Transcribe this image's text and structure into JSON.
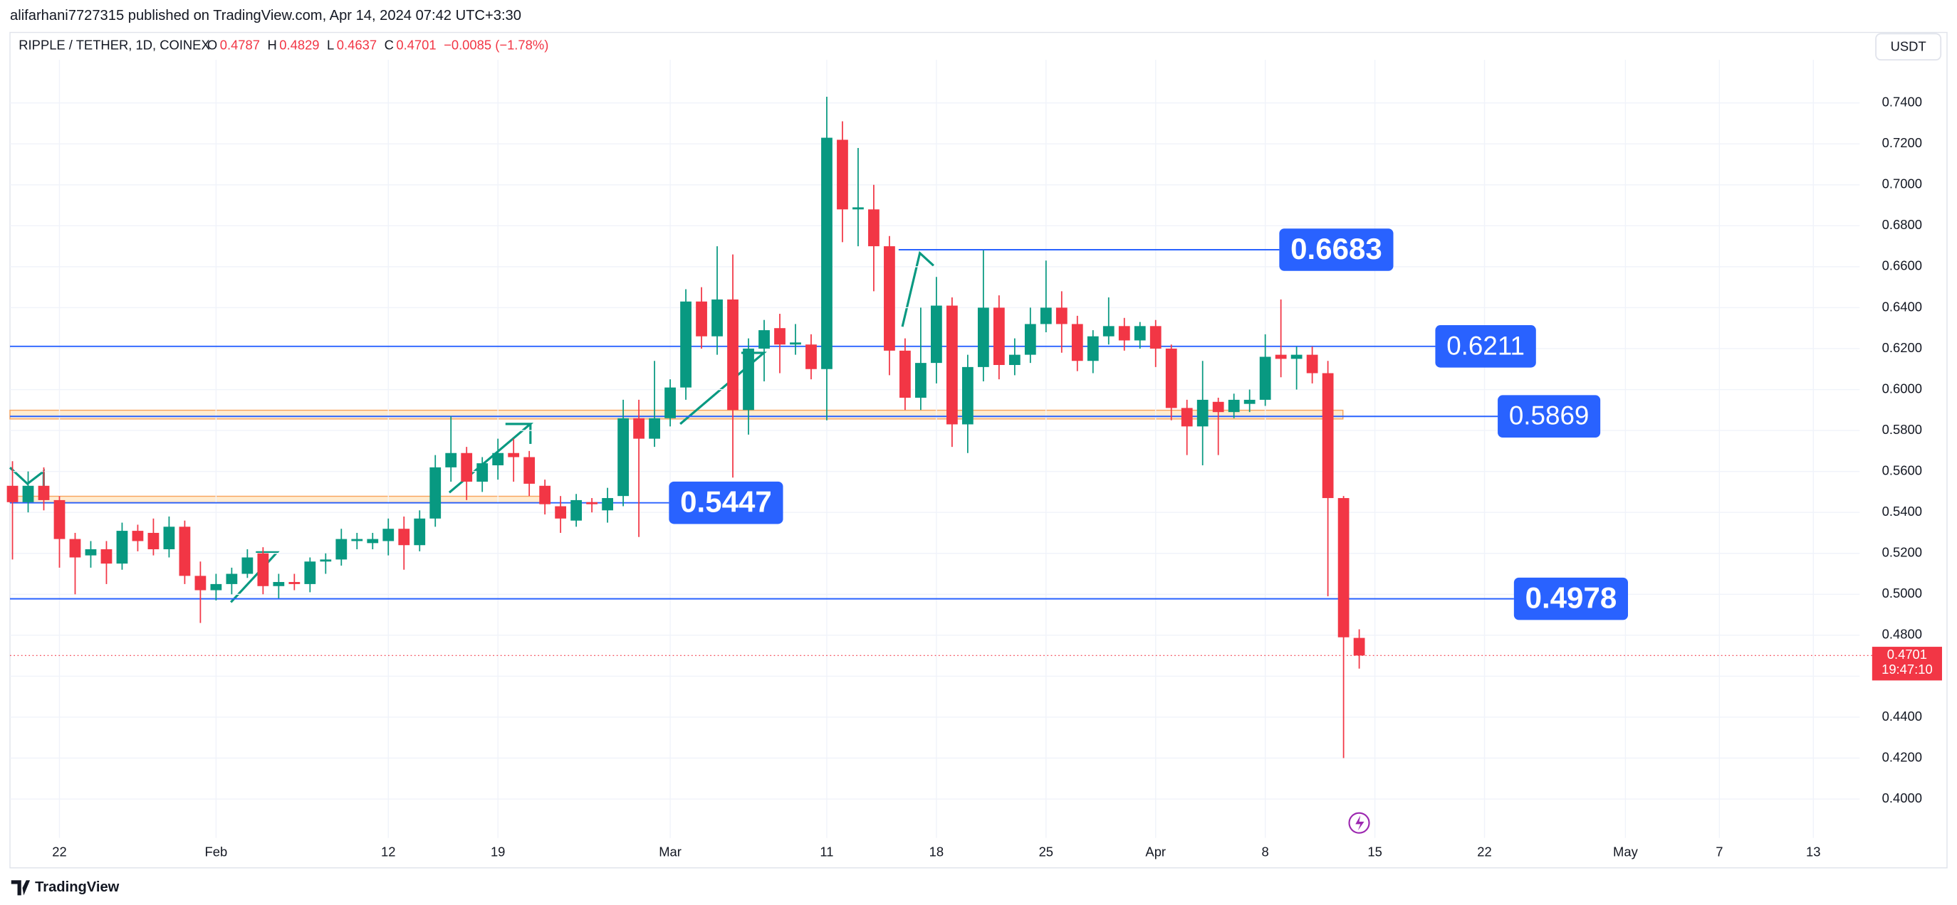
{
  "header": {
    "publisher": "alifarhani7727315 published on TradingView.com, Apr 14, 2024 07:42 UTC+3:30",
    "currency_button": "USDT",
    "brand": "TradingView"
  },
  "chart_data": {
    "type": "candlestick",
    "title": "RIPPLE / TETHER, 1D, COINEX",
    "legend": {
      "labels": [
        "O",
        "H",
        "L",
        "C"
      ],
      "values": [
        0.4787,
        0.4829,
        0.4637,
        0.4701
      ],
      "change_label": "−0.0085 (−1.78%)"
    },
    "up_color": "#089981",
    "down_color": "#f23645",
    "x": [
      "2024-01-19",
      "2024-01-20",
      "2024-01-21",
      "2024-01-22",
      "2024-01-23",
      "2024-01-24",
      "2024-01-25",
      "2024-01-26",
      "2024-01-27",
      "2024-01-28",
      "2024-01-29",
      "2024-01-30",
      "2024-01-31",
      "2024-02-01",
      "2024-02-02",
      "2024-02-03",
      "2024-02-04",
      "2024-02-05",
      "2024-02-06",
      "2024-02-07",
      "2024-02-08",
      "2024-02-09",
      "2024-02-10",
      "2024-02-11",
      "2024-02-12",
      "2024-02-13",
      "2024-02-14",
      "2024-02-15",
      "2024-02-16",
      "2024-02-17",
      "2024-02-18",
      "2024-02-19",
      "2024-02-20",
      "2024-02-21",
      "2024-02-22",
      "2024-02-23",
      "2024-02-24",
      "2024-02-25",
      "2024-02-26",
      "2024-02-27",
      "2024-02-28",
      "2024-02-29",
      "2024-03-01",
      "2024-03-02",
      "2024-03-03",
      "2024-03-04",
      "2024-03-05",
      "2024-03-06",
      "2024-03-07",
      "2024-03-08",
      "2024-03-09",
      "2024-03-10",
      "2024-03-11",
      "2024-03-12",
      "2024-03-13",
      "2024-03-14",
      "2024-03-15",
      "2024-03-16",
      "2024-03-17",
      "2024-03-18",
      "2024-03-19",
      "2024-03-20",
      "2024-03-21",
      "2024-03-22",
      "2024-03-23",
      "2024-03-24",
      "2024-03-25",
      "2024-03-26",
      "2024-03-27",
      "2024-03-28",
      "2024-03-29",
      "2024-03-30",
      "2024-03-31",
      "2024-04-01",
      "2024-04-02",
      "2024-04-03",
      "2024-04-04",
      "2024-04-05",
      "2024-04-06",
      "2024-04-07",
      "2024-04-08",
      "2024-04-09",
      "2024-04-10",
      "2024-04-11",
      "2024-04-12",
      "2024-04-13",
      "2024-04-14"
    ],
    "open": [
      0.553,
      0.545,
      0.553,
      0.546,
      0.527,
      0.519,
      0.522,
      0.515,
      0.531,
      0.53,
      0.522,
      0.533,
      0.509,
      0.502,
      0.505,
      0.51,
      0.52,
      0.504,
      0.506,
      0.505,
      0.516,
      0.517,
      0.526,
      0.525,
      0.526,
      0.532,
      0.524,
      0.537,
      0.562,
      0.569,
      0.555,
      0.563,
      0.569,
      0.567,
      0.553,
      0.543,
      0.536,
      0.545,
      0.541,
      0.548,
      0.586,
      0.576,
      0.586,
      0.601,
      0.643,
      0.626,
      0.644,
      0.59,
      0.62,
      0.63,
      0.622,
      0.622,
      0.61,
      0.722,
      0.688,
      0.688,
      0.67,
      0.619,
      0.596,
      0.613,
      0.641,
      0.583,
      0.611,
      0.64,
      0.612,
      0.617,
      0.632,
      0.64,
      0.632,
      0.614,
      0.626,
      0.631,
      0.624,
      0.631,
      0.62,
      0.591,
      0.582,
      0.594,
      0.589,
      0.593,
      0.595,
      0.617,
      0.615,
      0.617,
      0.608,
      0.547,
      0.4787
    ],
    "high": [
      0.565,
      0.56,
      0.562,
      0.548,
      0.53,
      0.526,
      0.526,
      0.535,
      0.534,
      0.537,
      0.538,
      0.536,
      0.516,
      0.51,
      0.513,
      0.522,
      0.523,
      0.51,
      0.51,
      0.518,
      0.52,
      0.532,
      0.53,
      0.53,
      0.537,
      0.538,
      0.541,
      0.568,
      0.587,
      0.572,
      0.567,
      0.576,
      0.576,
      0.57,
      0.556,
      0.548,
      0.549,
      0.547,
      0.552,
      0.595,
      0.595,
      0.614,
      0.605,
      0.649,
      0.65,
      0.67,
      0.666,
      0.625,
      0.634,
      0.637,
      0.632,
      0.627,
      0.743,
      0.731,
      0.718,
      0.7,
      0.675,
      0.625,
      0.64,
      0.655,
      0.645,
      0.617,
      0.668,
      0.646,
      0.625,
      0.64,
      0.663,
      0.648,
      0.636,
      0.629,
      0.645,
      0.635,
      0.633,
      0.634,
      0.622,
      0.595,
      0.614,
      0.596,
      0.598,
      0.6,
      0.627,
      0.644,
      0.621,
      0.621,
      0.614,
      0.548,
      0.4829
    ],
    "low": [
      0.517,
      0.54,
      0.541,
      0.513,
      0.5,
      0.513,
      0.505,
      0.512,
      0.521,
      0.519,
      0.518,
      0.505,
      0.486,
      0.497,
      0.5,
      0.508,
      0.5,
      0.498,
      0.502,
      0.501,
      0.51,
      0.514,
      0.522,
      0.522,
      0.519,
      0.512,
      0.521,
      0.533,
      0.555,
      0.546,
      0.55,
      0.556,
      0.555,
      0.548,
      0.539,
      0.53,
      0.533,
      0.54,
      0.535,
      0.543,
      0.528,
      0.572,
      0.582,
      0.595,
      0.62,
      0.617,
      0.557,
      0.578,
      0.604,
      0.608,
      0.617,
      0.605,
      0.585,
      0.672,
      0.67,
      0.648,
      0.607,
      0.59,
      0.59,
      0.603,
      0.572,
      0.569,
      0.604,
      0.605,
      0.607,
      0.613,
      0.628,
      0.618,
      0.609,
      0.608,
      0.622,
      0.619,
      0.62,
      0.611,
      0.585,
      0.568,
      0.563,
      0.568,
      0.586,
      0.589,
      0.592,
      0.606,
      0.6,
      0.603,
      0.499,
      0.42,
      0.4637
    ],
    "close": [
      0.545,
      0.553,
      0.546,
      0.527,
      0.518,
      0.522,
      0.515,
      0.531,
      0.526,
      0.522,
      0.533,
      0.509,
      0.502,
      0.505,
      0.51,
      0.518,
      0.504,
      0.506,
      0.505,
      0.516,
      0.517,
      0.527,
      0.527,
      0.527,
      0.532,
      0.524,
      0.537,
      0.562,
      0.569,
      0.555,
      0.564,
      0.569,
      0.567,
      0.554,
      0.544,
      0.537,
      0.546,
      0.544,
      0.547,
      0.586,
      0.576,
      0.586,
      0.601,
      0.643,
      0.626,
      0.644,
      0.59,
      0.62,
      0.629,
      0.622,
      0.623,
      0.61,
      0.723,
      0.688,
      0.689,
      0.67,
      0.619,
      0.596,
      0.613,
      0.641,
      0.583,
      0.611,
      0.64,
      0.612,
      0.617,
      0.632,
      0.64,
      0.632,
      0.614,
      0.626,
      0.631,
      0.624,
      0.631,
      0.62,
      0.591,
      0.582,
      0.595,
      0.589,
      0.595,
      0.595,
      0.616,
      0.615,
      0.617,
      0.608,
      0.547,
      0.479,
      0.4701
    ],
    "xlim": [
      "2024-01-19",
      "2024-05-15"
    ],
    "xticks": [
      {
        "value": "2024-01-22",
        "label": "22"
      },
      {
        "value": "2024-02-01",
        "label": "Feb"
      },
      {
        "value": "2024-02-12",
        "label": "12"
      },
      {
        "value": "2024-02-19",
        "label": "19"
      },
      {
        "value": "2024-03-01",
        "label": "Mar"
      },
      {
        "value": "2024-03-11",
        "label": "11"
      },
      {
        "value": "2024-03-18",
        "label": "18"
      },
      {
        "value": "2024-03-25",
        "label": "25"
      },
      {
        "value": "2024-04-01",
        "label": "Apr"
      },
      {
        "value": "2024-04-08",
        "label": "8"
      },
      {
        "value": "2024-04-15",
        "label": "15"
      },
      {
        "value": "2024-04-22",
        "label": "22"
      },
      {
        "value": "2024-05-01",
        "label": "May"
      },
      {
        "value": "2024-05-07",
        "label": "7"
      },
      {
        "value": "2024-05-13",
        "label": "13"
      }
    ],
    "ylim": [
      0.367,
      0.772
    ],
    "yticks": [
      {
        "value": 0.4,
        "label": "0.4000"
      },
      {
        "value": 0.42,
        "label": "0.4200"
      },
      {
        "value": 0.44,
        "label": "0.4400"
      },
      {
        "value": 0.46,
        "label": "0.4600"
      },
      {
        "value": 0.48,
        "label": "0.4800"
      },
      {
        "value": 0.5,
        "label": "0.5000"
      },
      {
        "value": 0.52,
        "label": "0.5200"
      },
      {
        "value": 0.54,
        "label": "0.5400"
      },
      {
        "value": 0.56,
        "label": "0.5600"
      },
      {
        "value": 0.58,
        "label": "0.5800"
      },
      {
        "value": 0.6,
        "label": "0.6000"
      },
      {
        "value": 0.62,
        "label": "0.6200"
      },
      {
        "value": 0.64,
        "label": "0.6400"
      },
      {
        "value": 0.66,
        "label": "0.6600"
      },
      {
        "value": 0.68,
        "label": "0.6800"
      },
      {
        "value": 0.7,
        "label": "0.7000"
      },
      {
        "value": 0.72,
        "label": "0.7200"
      },
      {
        "value": 0.74,
        "label": "0.7400"
      }
    ],
    "grid": true,
    "levels": [
      0.6683,
      0.6211,
      0.5869,
      0.5447,
      0.4978
    ],
    "level_color": "#2962ff",
    "last_price": 0.4701,
    "countdown": "19:47:10"
  }
}
